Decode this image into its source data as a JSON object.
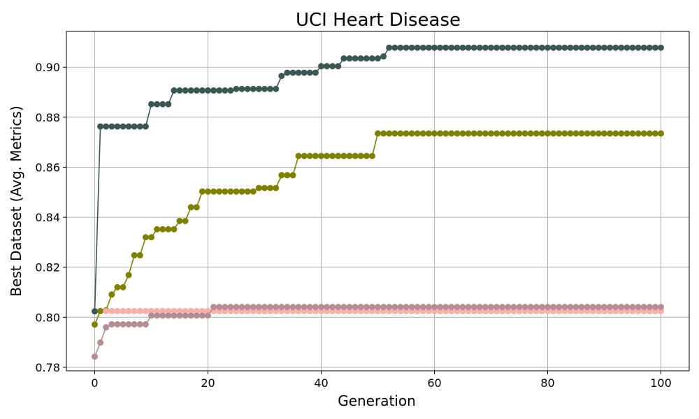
{
  "chart_data": {
    "type": "line",
    "title": "UCI Heart Disease",
    "xlabel": "Generation",
    "ylabel": "Best Dataset (Avg. Metrics)",
    "xlim": [
      -5,
      105
    ],
    "ylim": [
      0.7786,
      0.9143
    ],
    "xticks": [
      0,
      20,
      40,
      60,
      80,
      100
    ],
    "yticks": [
      0.78,
      0.8,
      0.82,
      0.84,
      0.86,
      0.88,
      0.9
    ],
    "ytick_labels": [
      "0.78",
      "0.80",
      "0.82",
      "0.84",
      "0.86",
      "0.88",
      "0.90"
    ],
    "xtick_labels": [
      "0",
      "20",
      "40",
      "60",
      "80",
      "100"
    ],
    "grid": true,
    "markers": true,
    "series": [
      {
        "color": "#3b5754",
        "steps": [
          [
            0,
            0.8024
          ],
          [
            1,
            0.8763
          ],
          [
            10,
            0.8852
          ],
          [
            14,
            0.8907
          ],
          [
            25,
            0.8913
          ],
          [
            33,
            0.8965
          ],
          [
            34,
            0.8978
          ],
          [
            40,
            0.9004
          ],
          [
            44,
            0.9035
          ],
          [
            51,
            0.9043
          ],
          [
            52,
            0.9078
          ]
        ]
      },
      {
        "color": "#808000",
        "steps": [
          [
            0,
            0.7971
          ],
          [
            1,
            0.8025
          ],
          [
            2,
            0.8028
          ],
          [
            3,
            0.8091
          ],
          [
            4,
            0.812
          ],
          [
            6,
            0.8169
          ],
          [
            7,
            0.8248
          ],
          [
            9,
            0.832
          ],
          [
            11,
            0.8352
          ],
          [
            15,
            0.8385
          ],
          [
            17,
            0.844
          ],
          [
            19,
            0.8503
          ],
          [
            29,
            0.8517
          ],
          [
            33,
            0.8568
          ],
          [
            36,
            0.8645
          ],
          [
            50,
            0.8735
          ]
        ]
      },
      {
        "color": "#fbaea4",
        "steps": [
          [
            2,
            0.8025
          ]
        ]
      },
      {
        "color": "#b48c94",
        "steps": [
          [
            0,
            0.7843
          ],
          [
            1,
            0.7899
          ],
          [
            2,
            0.796
          ],
          [
            3,
            0.7972
          ],
          [
            10,
            0.8007
          ],
          [
            21,
            0.8041
          ]
        ]
      }
    ]
  }
}
